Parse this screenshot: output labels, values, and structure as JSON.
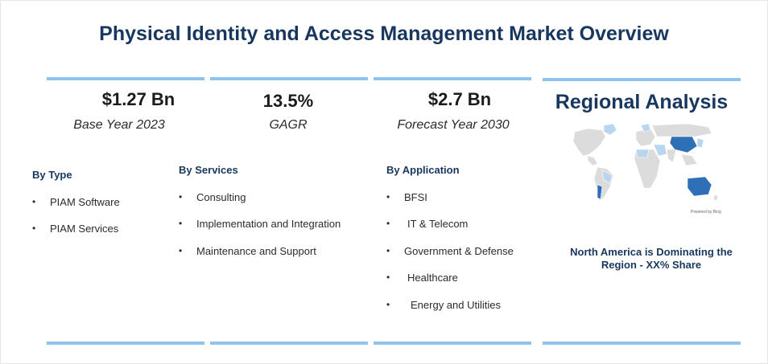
{
  "title": "Physical Identity and Access Management Market Overview",
  "stats": [
    {
      "value": "$1.27 Bn",
      "label": "Base Year 2023"
    },
    {
      "value": "13.5%",
      "label": "GAGR"
    },
    {
      "value": "$2.7 Bn",
      "label": "Forecast Year 2030"
    }
  ],
  "segments": {
    "type": {
      "title": "By Type",
      "items": [
        "PIAM Software",
        "PIAM Services"
      ]
    },
    "services": {
      "title": "By Services",
      "items": [
        "Consulting",
        "Implementation and Integration",
        "Maintenance and Support"
      ]
    },
    "application": {
      "title": "By Application",
      "items": [
        "BFSI",
        "IT & Telecom",
        "Government & Defense",
        "Healthcare",
        "Energy and Utilities"
      ]
    }
  },
  "regional": {
    "title": "Regional Analysis",
    "map_credit": "Powered by Bing",
    "note": "North America is Dominating the Region - XX% Share"
  },
  "colors": {
    "title": "#17375e",
    "accent_bar": "#8fc3ec",
    "map_base": "#e3e3e3",
    "map_light": "#b9d6f1",
    "map_dark": "#2e6fb7"
  }
}
